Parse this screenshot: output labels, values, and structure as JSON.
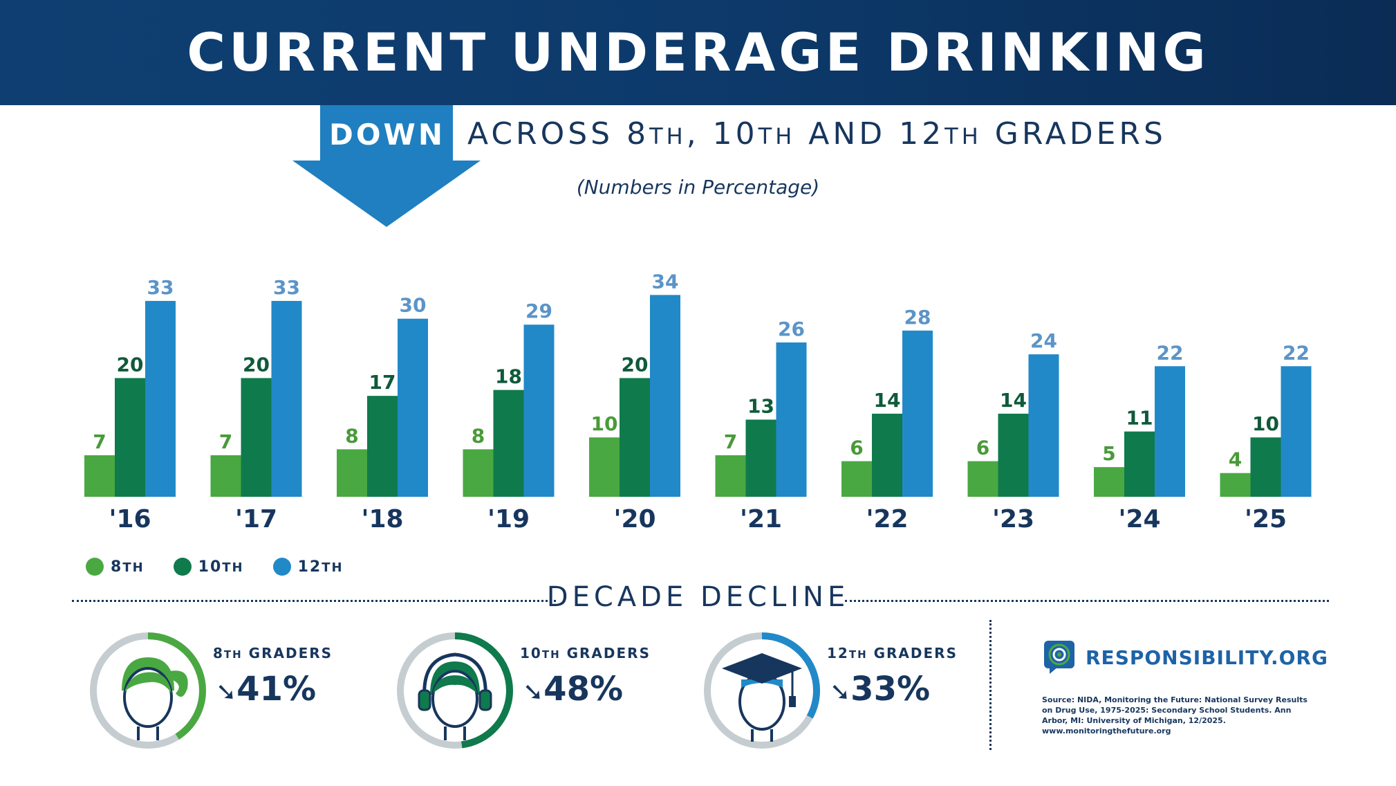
{
  "header": {
    "title": "CURRENT UNDERAGE DRINKING"
  },
  "subheader": {
    "down_label": "DOWN",
    "subtitle_parts": [
      "ACROSS 8",
      "TH",
      ", 10",
      "TH",
      " AND 12",
      "TH",
      " GRADERS"
    ],
    "units_note": "(Numbers in Percentage)"
  },
  "chart_data": {
    "type": "bar",
    "categories": [
      "'16",
      "'17",
      "'18",
      "'19",
      "'20",
      "'21",
      "'22",
      "'23",
      "'24",
      "'25"
    ],
    "series": [
      {
        "name": "8th",
        "values": [
          7,
          7,
          8,
          8,
          10,
          7,
          6,
          6,
          5,
          4
        ]
      },
      {
        "name": "10th",
        "values": [
          20,
          20,
          17,
          18,
          20,
          13,
          14,
          14,
          11,
          10
        ]
      },
      {
        "name": "12th",
        "values": [
          33,
          33,
          30,
          29,
          34,
          26,
          28,
          24,
          22,
          22
        ]
      }
    ],
    "ylim": [
      0,
      36
    ],
    "colors": [
      "#4aa842",
      "#0f7a4c",
      "#2189c8"
    ],
    "label_colors": [
      "#4a9a3a",
      "#0f5a3a",
      "#5b94c8"
    ],
    "legend_position": "bottom-left"
  },
  "legend": [
    {
      "num": "8",
      "suffix": "TH",
      "color": "#4aa842"
    },
    {
      "num": "10",
      "suffix": "TH",
      "color": "#0f7a4c"
    },
    {
      "num": "12",
      "suffix": "TH",
      "color": "#2189c8"
    }
  ],
  "decade": {
    "title": "DECADE DECLINE",
    "grades": [
      {
        "num": "8",
        "suffix": "TH",
        "label": " GRADERS",
        "arrow": "➘",
        "pct": "41%",
        "fraction": 0.41,
        "color": "#4aa842",
        "icon": "girl-face-icon"
      },
      {
        "num": "10",
        "suffix": "TH",
        "label": " GRADERS",
        "arrow": "➘",
        "pct": "48%",
        "fraction": 0.48,
        "color": "#0f7a4c",
        "icon": "headphones-face-icon"
      },
      {
        "num": "12",
        "suffix": "TH",
        "label": " GRADERS",
        "arrow": "➘",
        "pct": "33%",
        "fraction": 0.33,
        "color": "#2189c8",
        "icon": "graduate-face-icon"
      }
    ]
  },
  "brand": {
    "name": "RESPONSIBILITY.ORG",
    "icon": "target-speech-bubble-icon"
  },
  "source": {
    "text": "Source: NIDA, Monitoring the Future: National Survey Results on Drug Use, 1975-2025: Secondary School Students. Ann Arbor, MI: University of Michigan, 12/2025. www.monitoringthefuture.org"
  },
  "colors": {
    "header_bg": "#0d3a6b",
    "text_dark": "#17365d",
    "arrow_blue": "#1f7fc0",
    "ring_gray": "#c5cdd1"
  }
}
